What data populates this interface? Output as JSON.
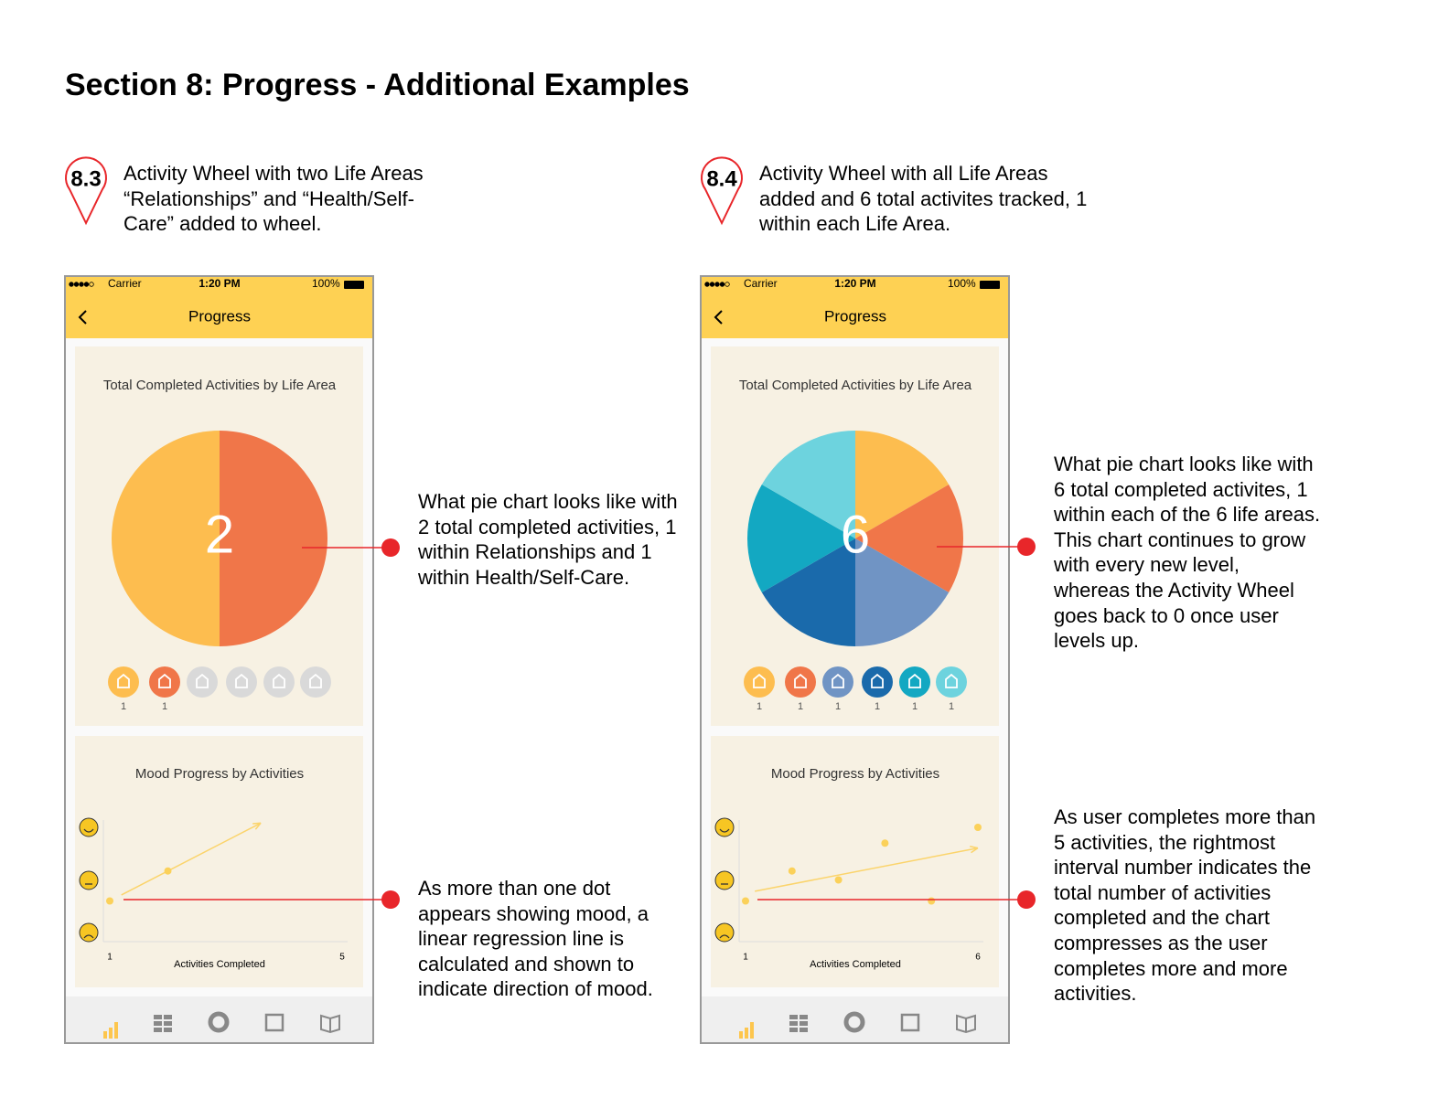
{
  "title": "Section 8: Progress - Additional Examples",
  "life_area_colors": [
    "#fdbd4f",
    "#f07649",
    "#7094c4",
    "#1a6aab",
    "#13a8c2",
    "#6dd3de"
  ],
  "inactive_color": "#d9d9d9",
  "examples": [
    {
      "badge": "8.3",
      "description": "Activity Wheel with two Life Areas “Relationships” and “Health/Self-Care” added to wheel.",
      "phone": {
        "carrier": "Carrier",
        "time": "1:20 PM",
        "battery": "100%",
        "header": "Progress",
        "pie_card": {
          "title": "Total Completed Activities by Life Area",
          "total": 2,
          "pie_direction": "counterclockwise",
          "life_area_counts": [
            1,
            1,
            null,
            null,
            null,
            null
          ]
        },
        "mood_card": {
          "title": "Mood Progress by Activities",
          "x_label": "Activities Completed",
          "xlim": [
            1,
            5
          ],
          "ylim": [
            1,
            3
          ],
          "points": [
            {
              "x": 1,
              "y": 1.6
            },
            {
              "x": 2,
              "y": 2.17
            }
          ]
        }
      },
      "notes": [
        "What pie chart looks like with 2 total completed activities, 1 within Relationships and 1 within Health/Self-Care.",
        "As more than one dot appears showing mood, a linear regression line is calculated and shown to indicate direction of mood."
      ]
    },
    {
      "badge": "8.4",
      "description": "Activity Wheel with all Life Areas added and 6 total activites tracked, 1 within each Life Area.",
      "phone": {
        "carrier": "Carrier",
        "time": "1:20 PM",
        "battery": "100%",
        "header": "Progress",
        "pie_card": {
          "title": "Total Completed Activities by Life Area",
          "total": 6,
          "pie_direction": "clockwise",
          "life_area_counts": [
            1,
            1,
            1,
            1,
            1,
            1
          ]
        },
        "mood_card": {
          "title": "Mood Progress by Activities",
          "x_label": "Activities Completed",
          "xlim": [
            1,
            6
          ],
          "ylim": [
            1,
            3
          ],
          "points": [
            {
              "x": 1,
              "y": 1.6
            },
            {
              "x": 2,
              "y": 2.17
            },
            {
              "x": 3,
              "y": 2.0
            },
            {
              "x": 4,
              "y": 2.7
            },
            {
              "x": 5,
              "y": 1.6
            },
            {
              "x": 6,
              "y": 3.0
            }
          ]
        }
      },
      "notes": [
        "What pie chart looks like with 6 total completed activites, 1 within each of the 6 life areas. This chart continues to grow with every new level, whereas the Activity Wheel goes back to 0 once user levels up.",
        "As user completes more than 5 activities, the rightmost interval number indicates the total number of activities completed and the chart compresses as the user completes more and more activities."
      ]
    }
  ]
}
